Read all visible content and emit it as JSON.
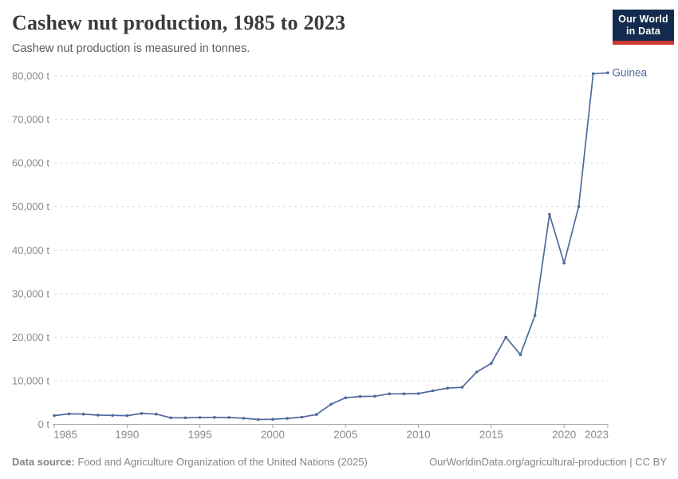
{
  "header": {
    "title": "Cashew nut production, 1985 to 2023",
    "subtitle": "Cashew nut production is measured in tonnes."
  },
  "logo": {
    "line1": "Our World",
    "line2": "in Data",
    "background_color": "#122B4E",
    "accent_color": "#CC372E"
  },
  "chart_data": {
    "type": "line",
    "title": "Cashew nut production, 1985 to 2023",
    "xlabel": "",
    "ylabel": "tonnes",
    "unit": " t",
    "grid": "horizontal-dashed",
    "legend": "end-of-line-label",
    "xlim": [
      1985,
      2023
    ],
    "ylim": [
      0,
      80000
    ],
    "x_ticks": [
      1985,
      1990,
      1995,
      2000,
      2005,
      2010,
      2015,
      2020,
      2023
    ],
    "y_ticks": [
      0,
      10000,
      20000,
      30000,
      40000,
      50000,
      60000,
      70000,
      80000
    ],
    "x": [
      1985,
      1986,
      1987,
      1988,
      1989,
      1990,
      1991,
      1992,
      1993,
      1994,
      1995,
      1996,
      1997,
      1998,
      1999,
      2000,
      2001,
      2002,
      2003,
      2004,
      2005,
      2006,
      2007,
      2008,
      2009,
      2010,
      2011,
      2012,
      2013,
      2014,
      2015,
      2016,
      2017,
      2018,
      2019,
      2020,
      2021,
      2022,
      2023
    ],
    "series": [
      {
        "name": "Guinea",
        "color": "#4C6A9C",
        "values": [
          2000,
          2400,
          2350,
          2100,
          2050,
          2000,
          2500,
          2350,
          1500,
          1500,
          1550,
          1600,
          1550,
          1400,
          1100,
          1150,
          1350,
          1650,
          2250,
          4600,
          6100,
          6400,
          6450,
          7000,
          7000,
          7050,
          7700,
          8300,
          8500,
          12000,
          14000,
          20000,
          16000,
          25000,
          48200,
          37000,
          50000,
          80500,
          80700
        ]
      }
    ]
  },
  "colors": {
    "grid_line": "#dcdcdc",
    "axis_line": "#a3a3a3",
    "tick_label": "#8a8a8a",
    "series_line": "#4C6A9C"
  },
  "footer": {
    "source_label": "Data source:",
    "source_text": "Food and Agriculture Organization of the United Nations (2025)",
    "right_text": "OurWorldinData.org/agricultural-production | CC BY"
  }
}
